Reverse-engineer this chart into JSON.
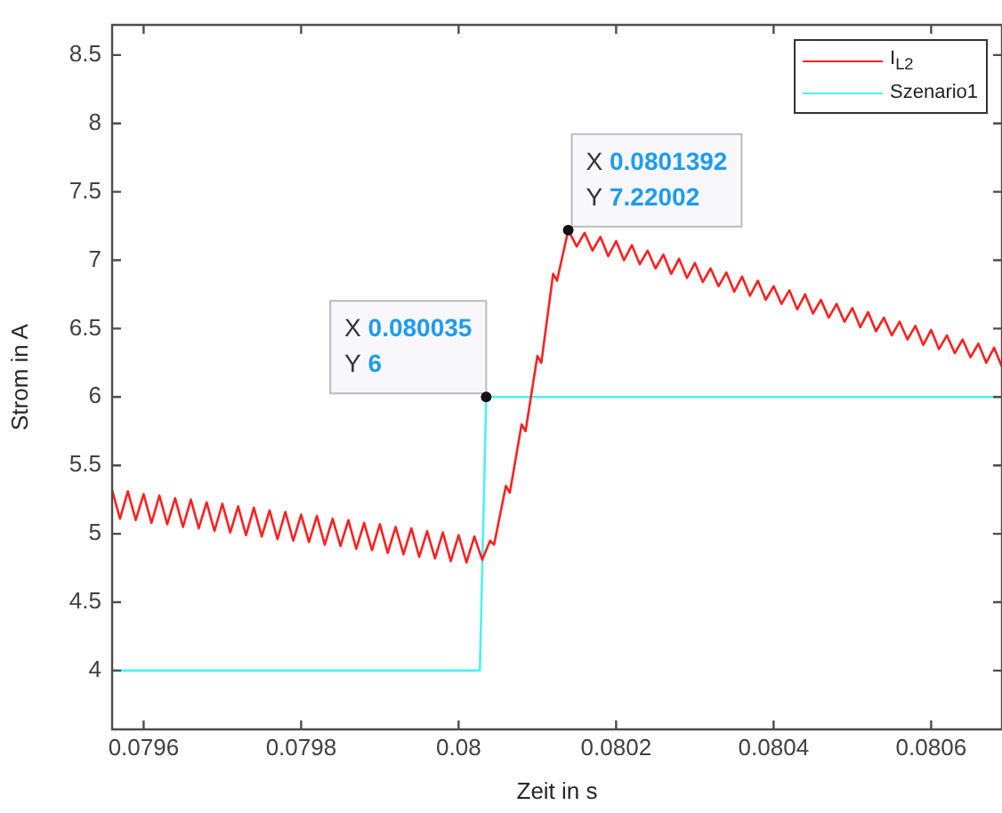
{
  "chart_data": {
    "type": "line",
    "xlabel": "Zeit in s",
    "ylabel": "Strom in A",
    "xlim": [
      0.07956,
      0.08069
    ],
    "xticks": [
      0.0796,
      0.0798,
      0.08,
      0.0802,
      0.0804,
      0.0806
    ],
    "ylim": [
      3.57,
      8.72
    ],
    "yticks": [
      4,
      4.5,
      5,
      5.5,
      6,
      6.5,
      7,
      7.5,
      8,
      8.5
    ],
    "grid": false,
    "legend": "top right",
    "marker": "none",
    "line_style": "solid",
    "series": [
      {
        "name": "I$_{L2}$",
        "color": "#ff2020",
        "x": [
          0.07956,
          0.07957,
          0.07958,
          0.07959,
          0.0796,
          0.07961,
          0.07962,
          0.07963,
          0.07964,
          0.07965,
          0.07966,
          0.07967,
          0.07968,
          0.07969,
          0.0797,
          0.07971,
          0.07972,
          0.07973,
          0.07974,
          0.07975,
          0.07976,
          0.07977,
          0.07978,
          0.07979,
          0.0798,
          0.07981,
          0.07982,
          0.07983,
          0.07984,
          0.07985,
          0.07986,
          0.07987,
          0.07988,
          0.07989,
          0.0799,
          0.07991,
          0.07992,
          0.07993,
          0.07994,
          0.07995,
          0.07996,
          0.07997,
          0.07998,
          0.07999,
          0.08,
          0.08001,
          0.08002,
          0.08003,
          0.08004,
          0.080045,
          0.08006,
          0.080065,
          0.08008,
          0.080085,
          0.0801,
          0.080105,
          0.08012,
          0.080125,
          0.0801392,
          0.08015,
          0.08016,
          0.08017,
          0.08018,
          0.08019,
          0.0802,
          0.08021,
          0.08022,
          0.08023,
          0.08024,
          0.08025,
          0.08026,
          0.08027,
          0.08028,
          0.08029,
          0.0803,
          0.08031,
          0.08032,
          0.08033,
          0.08034,
          0.08035,
          0.08036,
          0.08037,
          0.08038,
          0.08039,
          0.0804,
          0.08041,
          0.08042,
          0.08043,
          0.08044,
          0.08045,
          0.08046,
          0.08047,
          0.08048,
          0.08049,
          0.0805,
          0.08051,
          0.08052,
          0.08053,
          0.08054,
          0.08055,
          0.08056,
          0.08057,
          0.08058,
          0.08059,
          0.0806,
          0.08061,
          0.08062,
          0.08063,
          0.08064,
          0.08065,
          0.08066,
          0.08067,
          0.08068,
          0.08069
        ],
        "values": [
          5.32,
          5.11,
          5.31,
          5.1,
          5.29,
          5.08,
          5.28,
          5.07,
          5.26,
          5.05,
          5.25,
          5.04,
          5.23,
          5.02,
          5.22,
          5.01,
          5.2,
          4.99,
          5.19,
          4.98,
          5.17,
          4.96,
          5.16,
          4.95,
          5.14,
          4.94,
          5.13,
          4.92,
          5.11,
          4.91,
          5.1,
          4.89,
          5.08,
          4.88,
          5.07,
          4.86,
          5.05,
          4.85,
          5.04,
          4.83,
          5.02,
          4.82,
          5.01,
          4.8,
          4.99,
          4.79,
          4.98,
          4.81,
          4.95,
          4.92,
          5.35,
          5.3,
          5.8,
          5.75,
          6.3,
          6.25,
          6.9,
          6.85,
          7.22,
          7.1,
          7.2,
          7.07,
          7.17,
          7.03,
          7.14,
          7,
          7.11,
          6.97,
          7.07,
          6.94,
          7.04,
          6.9,
          7.01,
          6.87,
          6.98,
          6.84,
          6.94,
          6.81,
          6.91,
          6.77,
          6.88,
          6.74,
          6.85,
          6.71,
          6.81,
          6.68,
          6.78,
          6.64,
          6.75,
          6.61,
          6.71,
          6.58,
          6.68,
          6.55,
          6.65,
          6.51,
          6.62,
          6.48,
          6.58,
          6.45,
          6.55,
          6.42,
          6.52,
          6.38,
          6.49,
          6.35,
          6.45,
          6.32,
          6.42,
          6.29,
          6.39,
          6.25,
          6.36,
          6.22
        ]
      },
      {
        "name": "Szenario1",
        "color": "#4ef0f0",
        "x": [
          0.07956,
          0.080027,
          0.080035,
          0.08069
        ],
        "values": [
          4,
          4,
          6,
          6
        ]
      }
    ],
    "annotations": [
      {
        "text": "X 0.080035\nY 6",
        "x": 0.080035,
        "y": 6
      },
      {
        "text": "X 0.0801392\nY 7.22002",
        "x": 0.0801392,
        "y": 7.22002
      }
    ]
  }
}
